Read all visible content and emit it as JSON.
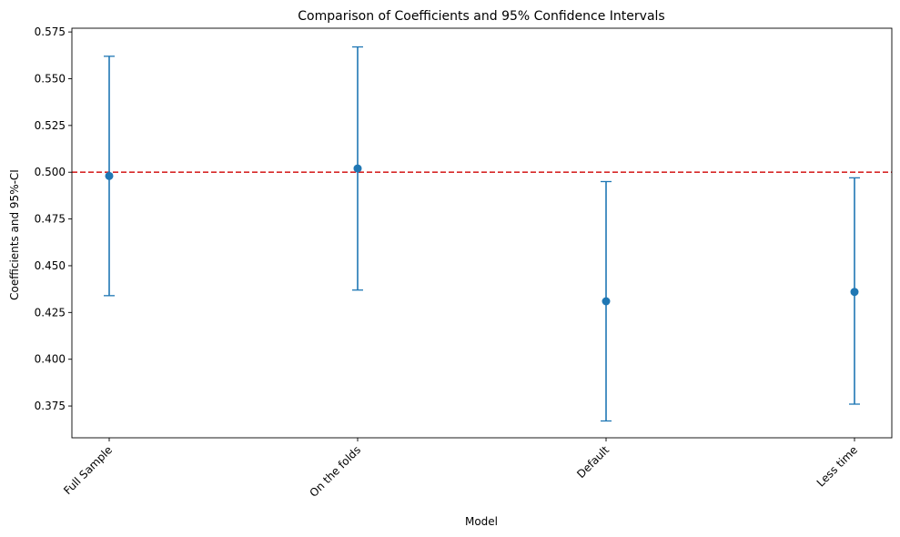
{
  "chart_data": {
    "type": "errorbar",
    "title": "Comparison of Coefficients and 95% Confidence Intervals",
    "xlabel": "Model",
    "ylabel": "Coefficients and 95%-CI",
    "categories": [
      "Full Sample",
      "On the folds",
      "Default",
      "Less time"
    ],
    "coefficients": [
      0.498,
      0.502,
      0.431,
      0.436
    ],
    "ci_lower": [
      0.434,
      0.437,
      0.367,
      0.376
    ],
    "ci_upper": [
      0.562,
      0.567,
      0.495,
      0.497
    ],
    "reference_line": {
      "y": 0.5,
      "style": "dashed",
      "color": "#d62728"
    },
    "ylim": [
      0.358,
      0.577
    ],
    "yticks": [
      "0.375",
      "0.400",
      "0.425",
      "0.450",
      "0.475",
      "0.500",
      "0.525",
      "0.550",
      "0.575"
    ],
    "xtick_rotation_deg": 45,
    "series_color": "#1f77b4",
    "grid": false
  }
}
